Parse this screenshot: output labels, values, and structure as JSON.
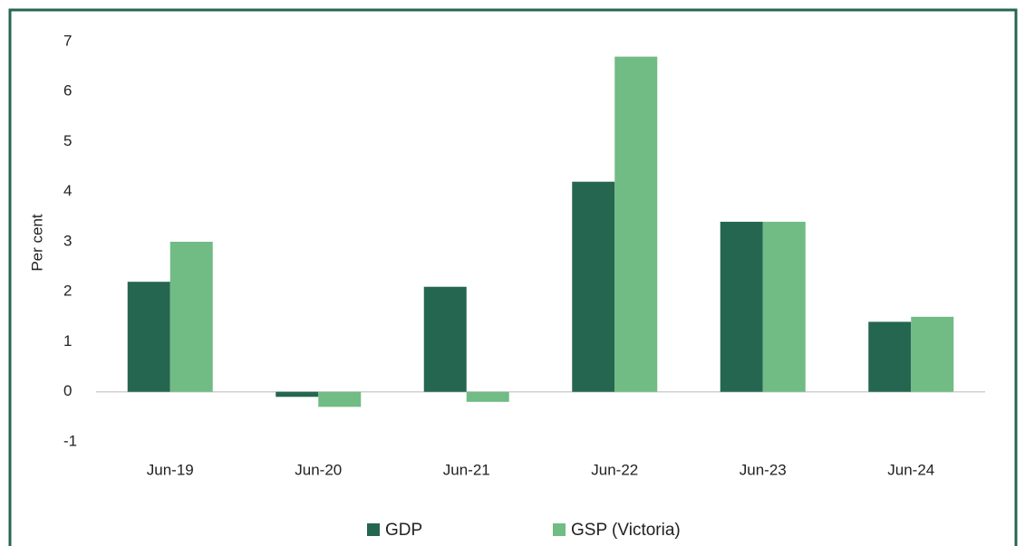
{
  "chart_data": {
    "type": "bar",
    "y_label": "Per cent",
    "categories": [
      "Jun-19",
      "Jun-20",
      "Jun-21",
      "Jun-22",
      "Jun-23",
      "Jun-24"
    ],
    "series": [
      {
        "name": "GDP",
        "color": "#256650",
        "values": [
          2.2,
          -0.1,
          2.1,
          4.2,
          3.4,
          1.4
        ]
      },
      {
        "name": "GSP (Victoria)",
        "color": "#71bb85",
        "values": [
          3.0,
          -0.3,
          -0.2,
          6.7,
          3.4,
          1.5
        ]
      }
    ],
    "ylim": [
      -1,
      7
    ],
    "yticks": [
      -1,
      0,
      1,
      2,
      3,
      4,
      5,
      6,
      7
    ],
    "grid": false,
    "legend": "bottom"
  }
}
